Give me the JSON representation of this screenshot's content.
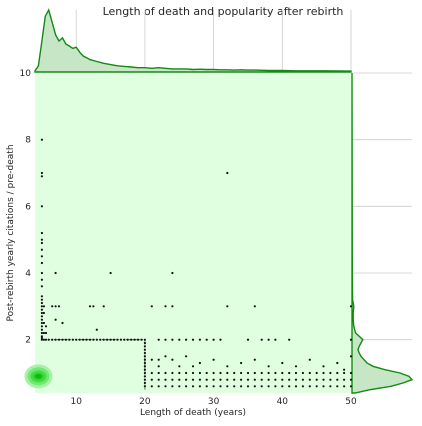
{
  "chart_data": {
    "type": "scatter",
    "title": "Length of death and popularity after rebirth",
    "xlabel": "Length of death (years)",
    "ylabel": "Post-rebirth yearly citations / pre-death",
    "xlim": [
      4,
      50
    ],
    "ylim": [
      0.4,
      10
    ],
    "xticks": [
      10,
      20,
      30,
      40,
      50
    ],
    "yticks": [
      2,
      4,
      6,
      8,
      10
    ],
    "grid": true,
    "colors": {
      "background": "#e0ffe0",
      "marginal_fill": "#c6e6c6",
      "marginal_line": "#138a13",
      "points": "#111111",
      "grid": "#cccccc"
    },
    "points": [
      [
        5,
        8.0
      ],
      [
        5,
        7.0
      ],
      [
        5,
        6.9
      ],
      [
        5,
        6.0
      ],
      [
        5,
        5.2
      ],
      [
        5,
        5.0
      ],
      [
        5,
        4.9
      ],
      [
        5,
        4.7
      ],
      [
        5,
        4.5
      ],
      [
        5,
        4.3
      ],
      [
        5,
        4.0
      ],
      [
        5,
        3.8
      ],
      [
        5,
        3.6
      ],
      [
        5,
        3.3
      ],
      [
        5,
        3.2
      ],
      [
        5,
        3.1
      ],
      [
        5,
        3.0
      ],
      [
        5,
        2.9
      ],
      [
        5,
        2.8
      ],
      [
        5,
        2.7
      ],
      [
        5,
        2.6
      ],
      [
        5,
        2.5
      ],
      [
        5,
        2.4
      ],
      [
        5,
        2.3
      ],
      [
        5,
        2.2
      ],
      [
        5,
        2.1
      ],
      [
        5,
        2.05
      ],
      [
        5,
        2.0
      ],
      [
        5.3,
        3.0
      ],
      [
        5.3,
        2.8
      ],
      [
        5.3,
        2.5
      ],
      [
        5.3,
        2.2
      ],
      [
        5.3,
        2.0
      ],
      [
        5.6,
        2.4
      ],
      [
        5.6,
        2.2
      ],
      [
        5.6,
        2.0
      ],
      [
        6.5,
        3.0
      ],
      [
        7,
        4.0
      ],
      [
        7,
        3.0
      ],
      [
        7,
        2.6
      ],
      [
        7.5,
        3.0
      ],
      [
        8,
        2.5
      ],
      [
        6,
        2.0
      ],
      [
        6.5,
        2.0
      ],
      [
        7,
        2.0
      ],
      [
        7.5,
        2.0
      ],
      [
        8,
        2.0
      ],
      [
        8.5,
        2.0
      ],
      [
        9,
        2.0
      ],
      [
        9.5,
        2.0
      ],
      [
        10,
        2.0
      ],
      [
        10.5,
        2.0
      ],
      [
        11,
        2.0
      ],
      [
        11.5,
        2.0
      ],
      [
        12,
        2.0
      ],
      [
        12.5,
        2.0
      ],
      [
        13,
        2.0
      ],
      [
        13.5,
        2.0
      ],
      [
        14,
        2.0
      ],
      [
        14.5,
        2.0
      ],
      [
        15,
        2.0
      ],
      [
        15.5,
        2.0
      ],
      [
        16,
        2.0
      ],
      [
        16.5,
        2.0
      ],
      [
        17,
        2.0
      ],
      [
        17.5,
        2.0
      ],
      [
        18,
        2.0
      ],
      [
        18.5,
        2.0
      ],
      [
        19,
        2.0
      ],
      [
        19.5,
        2.0
      ],
      [
        12,
        3.0
      ],
      [
        12.5,
        3.0
      ],
      [
        13,
        2.3
      ],
      [
        14,
        3.0
      ],
      [
        15,
        4.0
      ],
      [
        20,
        2.0
      ],
      [
        20,
        1.9
      ],
      [
        20,
        1.8
      ],
      [
        20,
        1.7
      ],
      [
        20,
        1.6
      ],
      [
        20,
        1.5
      ],
      [
        20,
        1.4
      ],
      [
        20,
        1.3
      ],
      [
        20,
        1.2
      ],
      [
        20,
        1.1
      ],
      [
        20,
        1.0
      ],
      [
        20,
        0.9
      ],
      [
        20,
        0.8
      ],
      [
        20,
        0.7
      ],
      [
        20,
        0.6
      ],
      [
        21,
        3.0
      ],
      [
        22,
        2.0
      ],
      [
        23,
        3.0
      ],
      [
        24,
        4.0
      ],
      [
        24,
        3.0
      ],
      [
        23,
        2.0
      ],
      [
        24,
        2.0
      ],
      [
        25,
        2.0
      ],
      [
        26,
        2.0
      ],
      [
        27,
        2.0
      ],
      [
        28,
        2.0
      ],
      [
        29,
        2.0
      ],
      [
        30,
        2.0
      ],
      [
        31,
        2.0
      ],
      [
        32,
        3.0
      ],
      [
        32,
        7.0
      ],
      [
        35,
        2.0
      ],
      [
        36,
        3.0
      ],
      [
        37,
        2.0
      ],
      [
        38,
        2.0
      ],
      [
        39,
        2.0
      ],
      [
        41,
        2.0
      ],
      [
        21,
        1.4
      ],
      [
        22,
        1.4
      ],
      [
        22,
        1.2
      ],
      [
        23,
        1.5
      ],
      [
        24,
        1.4
      ],
      [
        25,
        1.2
      ],
      [
        26,
        1.5
      ],
      [
        27,
        1.2
      ],
      [
        28,
        1.3
      ],
      [
        30,
        1.4
      ],
      [
        32,
        1.2
      ],
      [
        34,
        1.3
      ],
      [
        36,
        1.4
      ],
      [
        38,
        1.2
      ],
      [
        40,
        1.3
      ],
      [
        42,
        1.2
      ],
      [
        44,
        1.4
      ],
      [
        46,
        1.2
      ],
      [
        48,
        1.3
      ],
      [
        49,
        1.1
      ],
      [
        21,
        1.0
      ],
      [
        22,
        1.0
      ],
      [
        23,
        1.0
      ],
      [
        24,
        1.0
      ],
      [
        25,
        1.0
      ],
      [
        26,
        1.0
      ],
      [
        27,
        1.0
      ],
      [
        28,
        1.0
      ],
      [
        29,
        1.0
      ],
      [
        30,
        1.0
      ],
      [
        31,
        1.0
      ],
      [
        32,
        1.0
      ],
      [
        33,
        1.0
      ],
      [
        34,
        1.0
      ],
      [
        35,
        1.0
      ],
      [
        36,
        1.0
      ],
      [
        37,
        1.0
      ],
      [
        38,
        1.0
      ],
      [
        39,
        1.0
      ],
      [
        40,
        1.0
      ],
      [
        41,
        1.0
      ],
      [
        42,
        1.0
      ],
      [
        43,
        1.0
      ],
      [
        44,
        1.0
      ],
      [
        45,
        1.0
      ],
      [
        46,
        1.0
      ],
      [
        47,
        1.0
      ],
      [
        48,
        1.0
      ],
      [
        49,
        1.0
      ],
      [
        50,
        1.0
      ],
      [
        21,
        0.8
      ],
      [
        22,
        0.8
      ],
      [
        23,
        0.8
      ],
      [
        24,
        0.8
      ],
      [
        25,
        0.8
      ],
      [
        26,
        0.8
      ],
      [
        27,
        0.8
      ],
      [
        28,
        0.8
      ],
      [
        29,
        0.8
      ],
      [
        30,
        0.8
      ],
      [
        31,
        0.8
      ],
      [
        32,
        0.8
      ],
      [
        33,
        0.8
      ],
      [
        34,
        0.8
      ],
      [
        35,
        0.8
      ],
      [
        36,
        0.8
      ],
      [
        37,
        0.8
      ],
      [
        38,
        0.8
      ],
      [
        39,
        0.8
      ],
      [
        40,
        0.8
      ],
      [
        41,
        0.8
      ],
      [
        42,
        0.8
      ],
      [
        43,
        0.8
      ],
      [
        44,
        0.8
      ],
      [
        45,
        0.8
      ],
      [
        46,
        0.8
      ],
      [
        47,
        0.8
      ],
      [
        48,
        0.8
      ],
      [
        49,
        0.8
      ],
      [
        50,
        0.8
      ],
      [
        21,
        0.6
      ],
      [
        22,
        0.6
      ],
      [
        23,
        0.6
      ],
      [
        24,
        0.6
      ],
      [
        25,
        0.6
      ],
      [
        26,
        0.6
      ],
      [
        27,
        0.6
      ],
      [
        28,
        0.6
      ],
      [
        29,
        0.6
      ],
      [
        30,
        0.6
      ],
      [
        31,
        0.6
      ],
      [
        32,
        0.6
      ],
      [
        33,
        0.6
      ],
      [
        34,
        0.6
      ],
      [
        35,
        0.6
      ],
      [
        36,
        0.6
      ],
      [
        37,
        0.6
      ],
      [
        38,
        0.6
      ],
      [
        39,
        0.6
      ],
      [
        40,
        0.6
      ],
      [
        41,
        0.6
      ],
      [
        42,
        0.6
      ],
      [
        43,
        0.6
      ],
      [
        44,
        0.6
      ],
      [
        45,
        0.6
      ],
      [
        46,
        0.6
      ],
      [
        47,
        0.6
      ],
      [
        48,
        0.6
      ],
      [
        49,
        0.6
      ],
      [
        50,
        0.6
      ],
      [
        50,
        3.0
      ],
      [
        50,
        2.0
      ],
      [
        50,
        1.5
      ]
    ],
    "marginal_x": [
      [
        4,
        0.02
      ],
      [
        4.5,
        0.1
      ],
      [
        5,
        0.5
      ],
      [
        5.5,
        0.9
      ],
      [
        6,
        1.0
      ],
      [
        6.5,
        0.8
      ],
      [
        7,
        0.6
      ],
      [
        7.5,
        0.5
      ],
      [
        8,
        0.55
      ],
      [
        8.5,
        0.45
      ],
      [
        9,
        0.42
      ],
      [
        9.5,
        0.38
      ],
      [
        10,
        0.4
      ],
      [
        10.5,
        0.32
      ],
      [
        11,
        0.26
      ],
      [
        12,
        0.2
      ],
      [
        13,
        0.17
      ],
      [
        14,
        0.14
      ],
      [
        15,
        0.12
      ],
      [
        16,
        0.1
      ],
      [
        17,
        0.09
      ],
      [
        18,
        0.08
      ],
      [
        19,
        0.07
      ],
      [
        20,
        0.07
      ],
      [
        21,
        0.06
      ],
      [
        22,
        0.07
      ],
      [
        23,
        0.06
      ],
      [
        24,
        0.05
      ],
      [
        25,
        0.05
      ],
      [
        26,
        0.05
      ],
      [
        27,
        0.04
      ],
      [
        28,
        0.045
      ],
      [
        29,
        0.04
      ],
      [
        30,
        0.04
      ],
      [
        31,
        0.035
      ],
      [
        32,
        0.035
      ],
      [
        33,
        0.03
      ],
      [
        34,
        0.035
      ],
      [
        35,
        0.03
      ],
      [
        36,
        0.03
      ],
      [
        38,
        0.025
      ],
      [
        40,
        0.025
      ],
      [
        42,
        0.02
      ],
      [
        44,
        0.02
      ],
      [
        46,
        0.02
      ],
      [
        48,
        0.018
      ],
      [
        50,
        0.015
      ]
    ],
    "marginal_y": [
      [
        0.4,
        0.05
      ],
      [
        0.5,
        0.3
      ],
      [
        0.6,
        0.65
      ],
      [
        0.7,
        0.85
      ],
      [
        0.8,
        1.0
      ],
      [
        0.9,
        0.95
      ],
      [
        1.0,
        0.8
      ],
      [
        1.1,
        0.55
      ],
      [
        1.2,
        0.35
      ],
      [
        1.3,
        0.25
      ],
      [
        1.4,
        0.2
      ],
      [
        1.5,
        0.15
      ],
      [
        1.6,
        0.12
      ],
      [
        1.7,
        0.1
      ],
      [
        1.8,
        0.12
      ],
      [
        1.9,
        0.15
      ],
      [
        2.0,
        0.18
      ],
      [
        2.1,
        0.12
      ],
      [
        2.2,
        0.06
      ],
      [
        2.4,
        0.03
      ],
      [
        2.6,
        0.02
      ],
      [
        2.8,
        0.02
      ],
      [
        3.0,
        0.03
      ],
      [
        3.2,
        0.01
      ],
      [
        4.0,
        0.005
      ],
      [
        10,
        0.0
      ]
    ],
    "kde_blob": {
      "x": 4.5,
      "y": 0.9
    }
  }
}
